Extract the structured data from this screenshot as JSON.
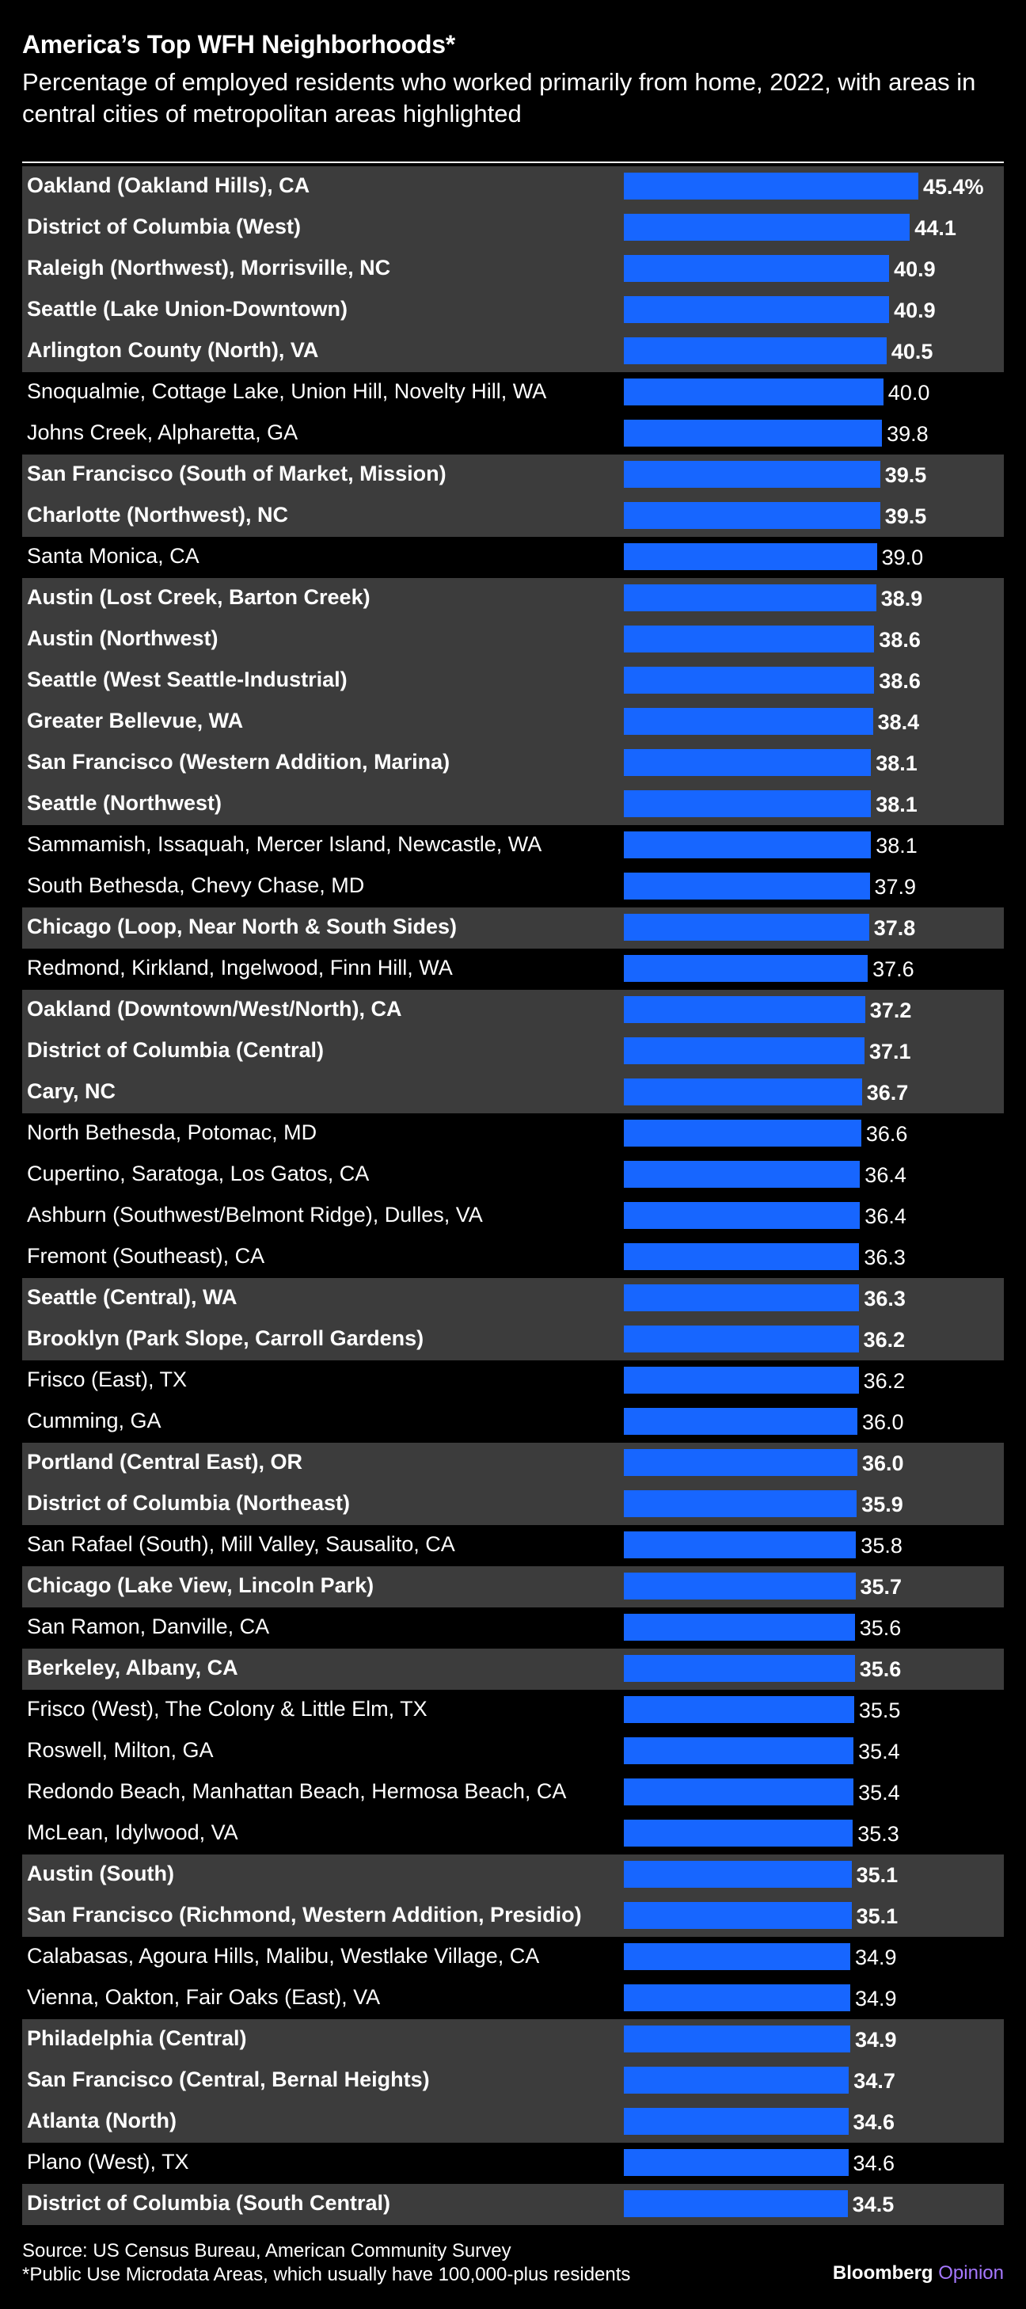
{
  "title": "America’s Top WFH Neighborhoods*",
  "subtitle": "Percentage of employed residents who worked primarily from home, 2022, with areas in central cities of metropolitan areas highlighted",
  "footer": {
    "source": "Source: US Census Bureau, American Community Survey",
    "footnote": "*Public Use Microdata Areas, which usually have 100,000-plus residents",
    "brand_name": "Bloomberg",
    "brand_section": "Opinion"
  },
  "colors": {
    "bar": "#1766ff",
    "highlight_row": "#3c3c3c",
    "background": "#000000"
  },
  "chart_data": {
    "type": "bar",
    "orientation": "horizontal",
    "xlim": [
      0,
      45.4
    ],
    "grid": false,
    "categories": [
      "Oakland (Oakland Hills), CA",
      "District of Columbia (West)",
      "Raleigh (Northwest), Morrisville, NC",
      "Seattle (Lake Union-Downtown)",
      "Arlington County (North), VA",
      "Snoqualmie, Cottage Lake, Union Hill, Novelty Hill, WA",
      "Johns Creek, Alpharetta, GA",
      "San Francisco (South of Market, Mission)",
      "Charlotte (Northwest), NC",
      "Santa Monica, CA",
      "Austin (Lost Creek, Barton Creek)",
      "Austin (Northwest)",
      "Seattle (West Seattle-Industrial)",
      "Greater Bellevue, WA",
      "San Francisco (Western Addition, Marina)",
      "Seattle (Northwest)",
      "Sammamish, Issaquah, Mercer Island, Newcastle, WA",
      "South Bethesda, Chevy Chase, MD",
      "Chicago (Loop, Near North & South Sides)",
      "Redmond, Kirkland, Ingelwood, Finn Hill, WA",
      "Oakland (Downtown/West/North), CA",
      "District of Columbia (Central)",
      "Cary, NC",
      "North Bethesda, Potomac, MD",
      "Cupertino, Saratoga, Los Gatos, CA",
      "Ashburn (Southwest/Belmont Ridge), Dulles, VA",
      "Fremont (Southeast), CA",
      "Seattle (Central), WA",
      "Brooklyn (Park Slope, Carroll Gardens)",
      "Frisco (East), TX",
      "Cumming, GA",
      "Portland (Central East), OR",
      "District of Columbia (Northeast)",
      "San Rafael (South), Mill Valley, Sausalito, CA",
      "Chicago (Lake View, Lincoln Park)",
      "San Ramon, Danville, CA",
      "Berkeley, Albany, CA",
      "Frisco (West), The Colony & Little Elm, TX",
      "Roswell, Milton, GA",
      "Redondo Beach, Manhattan Beach, Hermosa Beach, CA",
      "McLean, Idylwood, VA",
      "Austin (South)",
      "San Francisco (Richmond, Western Addition, Presidio)",
      "Calabasas, Agoura Hills, Malibu, Westlake Village, CA",
      "Vienna, Oakton, Fair Oaks (East), VA",
      "Philadelphia (Central)",
      "San Francisco (Central, Bernal Heights)",
      "Atlanta (North)",
      "Plano (West), TX",
      "District of Columbia (South Central)"
    ],
    "values": [
      45.4,
      44.1,
      40.9,
      40.9,
      40.5,
      40.0,
      39.8,
      39.5,
      39.5,
      39.0,
      38.9,
      38.6,
      38.6,
      38.4,
      38.1,
      38.1,
      38.1,
      37.9,
      37.8,
      37.6,
      37.2,
      37.1,
      36.7,
      36.6,
      36.4,
      36.4,
      36.3,
      36.3,
      36.2,
      36.2,
      36.0,
      36.0,
      35.9,
      35.8,
      35.7,
      35.6,
      35.6,
      35.5,
      35.4,
      35.4,
      35.3,
      35.1,
      35.1,
      34.9,
      34.9,
      34.9,
      34.7,
      34.6,
      34.6,
      34.5
    ],
    "value_labels": [
      "45.4%",
      "44.1",
      "40.9",
      "40.9",
      "40.5",
      "40.0",
      "39.8",
      "39.5",
      "39.5",
      "39.0",
      "38.9",
      "38.6",
      "38.6",
      "38.4",
      "38.1",
      "38.1",
      "38.1",
      "37.9",
      "37.8",
      "37.6",
      "37.2",
      "37.1",
      "36.7",
      "36.6",
      "36.4",
      "36.4",
      "36.3",
      "36.3",
      "36.2",
      "36.2",
      "36.0",
      "36.0",
      "35.9",
      "35.8",
      "35.7",
      "35.6",
      "35.6",
      "35.5",
      "35.4",
      "35.4",
      "35.3",
      "35.1",
      "35.1",
      "34.9",
      "34.9",
      "34.9",
      "34.7",
      "34.6",
      "34.6",
      "34.5"
    ],
    "central_city": [
      true,
      true,
      true,
      true,
      true,
      false,
      false,
      true,
      true,
      false,
      true,
      true,
      true,
      true,
      true,
      true,
      false,
      false,
      true,
      false,
      true,
      true,
      true,
      false,
      false,
      false,
      false,
      true,
      true,
      false,
      false,
      true,
      true,
      false,
      true,
      false,
      true,
      false,
      false,
      false,
      false,
      true,
      true,
      false,
      false,
      true,
      true,
      true,
      false,
      true
    ]
  }
}
